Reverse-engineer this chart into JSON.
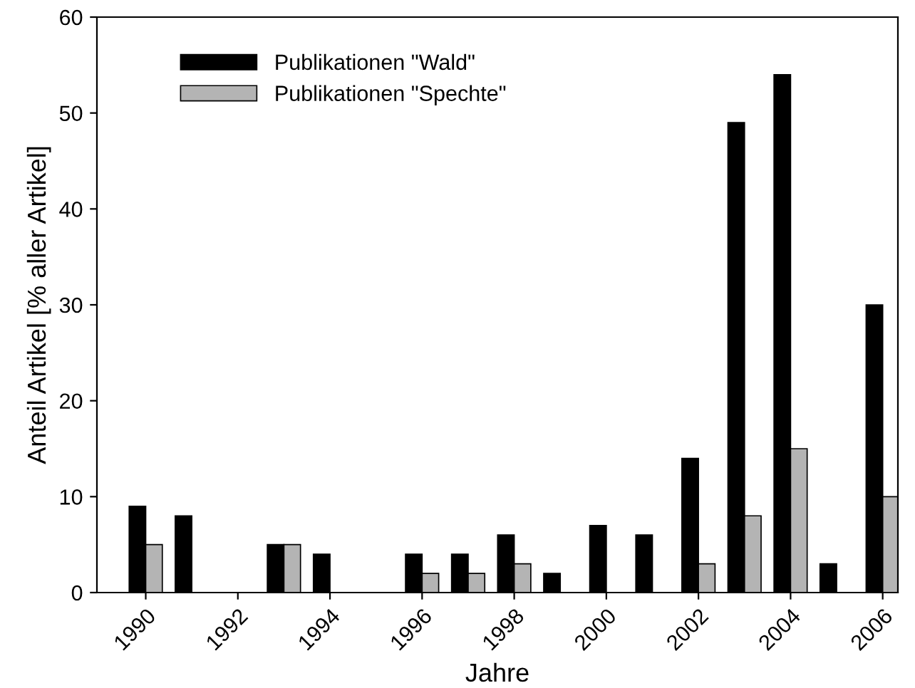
{
  "chart_data": {
    "type": "bar",
    "xlabel": "Jahre",
    "ylabel": "Anteil Artikel [% aller Artikel]",
    "x": [
      1990,
      1991,
      1992,
      1993,
      1994,
      1995,
      1996,
      1997,
      1998,
      1999,
      2000,
      2001,
      2002,
      2003,
      2004,
      2005,
      2006
    ],
    "series": [
      {
        "name": "Publikationen \"Wald\"",
        "color": "#000000",
        "values": [
          9,
          8,
          null,
          5,
          4,
          null,
          4,
          4,
          6,
          2,
          7,
          6,
          14,
          49,
          54,
          3,
          30
        ]
      },
      {
        "name": "Publikationen \"Spechte\"",
        "color": "#b4b4b4",
        "values": [
          5,
          null,
          null,
          5,
          null,
          null,
          2,
          2,
          3,
          null,
          null,
          null,
          3,
          8,
          15,
          null,
          10
        ]
      }
    ],
    "xlim": [
      1988.94,
      2006.33
    ],
    "xticks": [
      1990,
      1992,
      1994,
      1996,
      1998,
      2000,
      2002,
      2004,
      2006
    ],
    "ylim": [
      0,
      60
    ],
    "yticks": [
      0,
      10,
      20,
      30,
      40,
      50,
      60
    ],
    "grid": false,
    "legend": "top left"
  }
}
